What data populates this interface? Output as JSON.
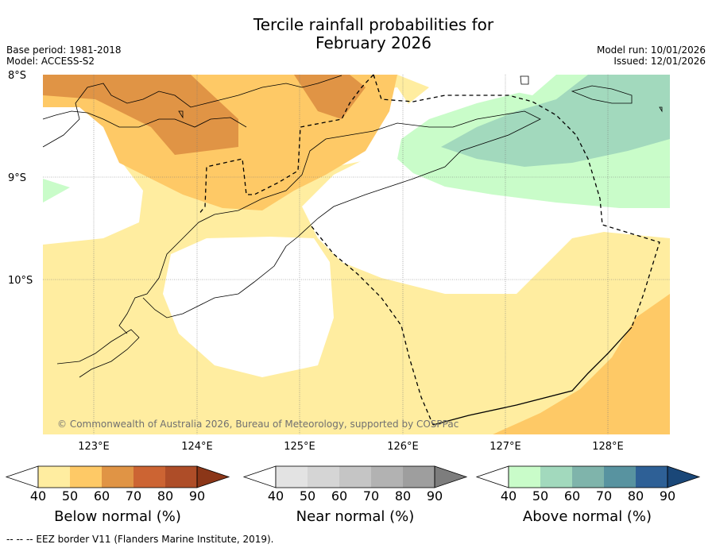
{
  "title_line1": "Tercile rainfall probabilities for",
  "title_line2": "February 2026",
  "base_period": "Base period: 1981-2018",
  "model": "Model: ACCESS-S2",
  "model_run": "Model run: 10/01/2026",
  "issued": "Issued: 12/01/2026",
  "lat_labels": [
    "8°S",
    "9°S",
    "10°S"
  ],
  "lon_labels": [
    "123°E",
    "124°E",
    "125°E",
    "126°E",
    "127°E",
    "128°E"
  ],
  "copyright": "© Commonwealth of Australia 2026, Bureau of Meteorology, supported by COSPPac",
  "colorbars": [
    {
      "label": "Below normal (%)",
      "ticks": [
        "40",
        "50",
        "60",
        "70",
        "80",
        "90"
      ],
      "colors": [
        "#ffffff",
        "#ffeda0",
        "#fec966",
        "#e09445",
        "#cc6433",
        "#ae4d28",
        "#8b3618"
      ]
    },
    {
      "label": "Near normal (%)",
      "ticks": [
        "40",
        "50",
        "60",
        "70",
        "80",
        "90"
      ],
      "colors": [
        "#ffffff",
        "#e3e3e3",
        "#d5d5d5",
        "#c5c5c5",
        "#b2b2b2",
        "#9e9e9e",
        "#7d7d7d"
      ]
    },
    {
      "label": "Above normal (%)",
      "ticks": [
        "40",
        "50",
        "60",
        "70",
        "80",
        "90"
      ],
      "colors": [
        "#ffffff",
        "#c9fcc9",
        "#a2d9bd",
        "#7fb4ab",
        "#5893a0",
        "#2e6096",
        "#1a4778"
      ]
    }
  ],
  "footnote": "--  --  -- EEZ border V11 (Flanders Marine Institute, 2019)."
}
